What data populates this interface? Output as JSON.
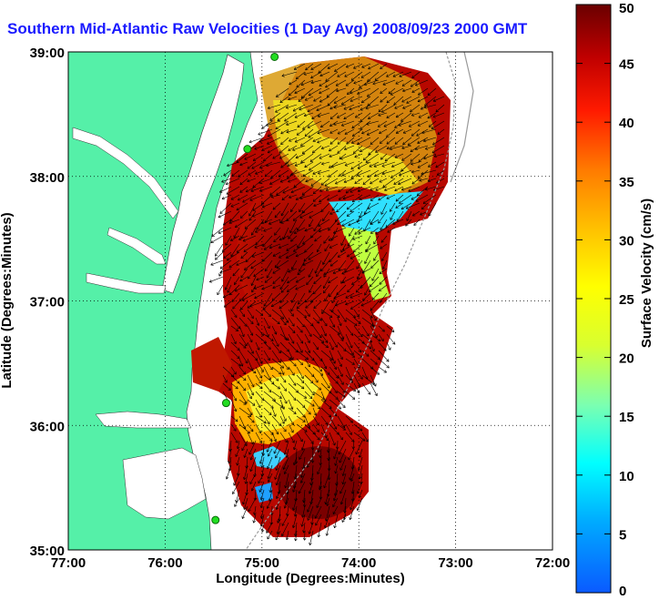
{
  "title": "Southern Mid-Atlantic Raw Velocities (1 Day Avg) 2008/09/23 2000 GMT",
  "x_axis": {
    "label": "Longitude (Degrees:Minutes)",
    "ticks": [
      "77:00",
      "76:00",
      "75:00",
      "74:00",
      "73:00",
      "72:00"
    ]
  },
  "y_axis": {
    "label": "Latitude (Degrees:Minutes)",
    "ticks": [
      "39:00",
      "38:00",
      "37:00",
      "36:00",
      "35:00"
    ]
  },
  "colorbar": {
    "label": "Surface Velocity (cm/s)",
    "ticks": [
      "50",
      "45",
      "40",
      "35",
      "30",
      "25",
      "20",
      "15",
      "10",
      "5",
      "0"
    ],
    "min": 0,
    "max": 50
  },
  "map_extent": {
    "lon_min": -77,
    "lon_max": -72,
    "lat_min": 35,
    "lat_max": 39
  },
  "colors": {
    "land": "#55f0a8",
    "water_bg": "#ffffff",
    "title": "#1a1aff",
    "stations": "#22dd22"
  },
  "grid": "dotted",
  "stations": [
    {
      "lon": -74.87,
      "lat": 38.96
    },
    {
      "lon": -75.15,
      "lat": 38.22
    },
    {
      "lon": -75.37,
      "lat": 36.18
    },
    {
      "lon": -75.48,
      "lat": 35.24
    }
  ]
}
